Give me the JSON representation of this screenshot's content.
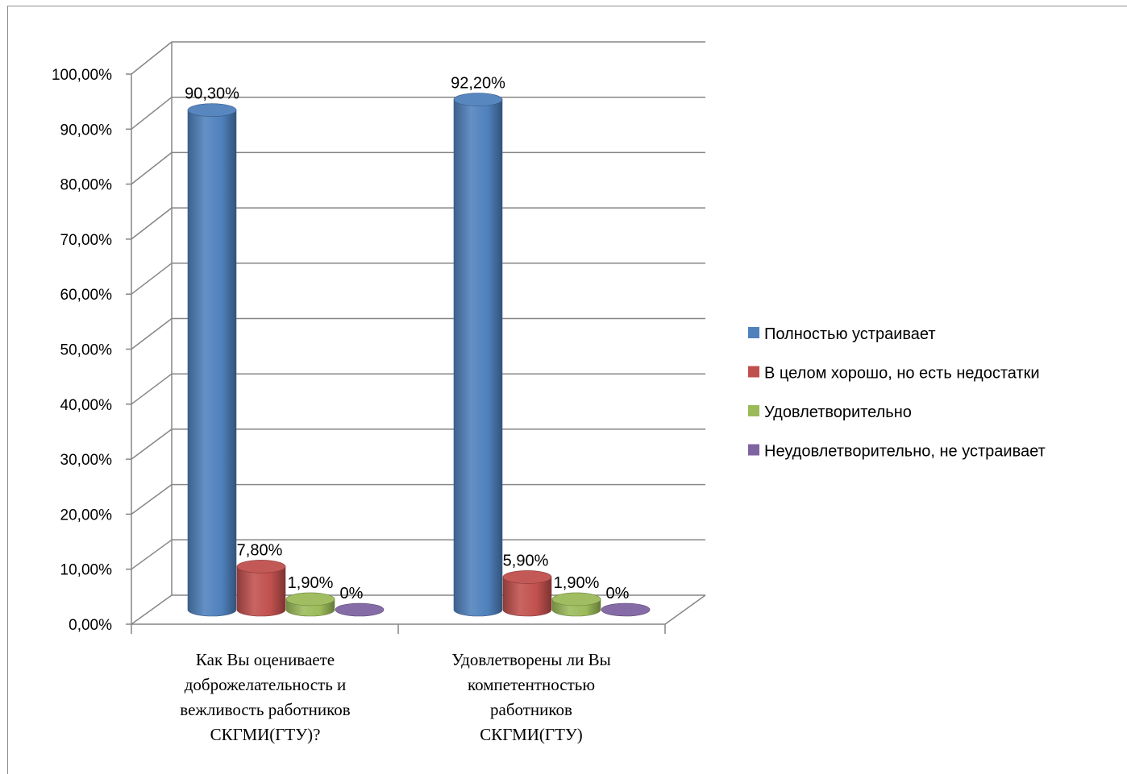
{
  "chart_data": {
    "type": "bar",
    "variant": "3d-cylinder",
    "categories": [
      "Как Вы оцениваете доброжелательность и вежливость работников СКГМИ(ГТУ)?",
      "Удовлетворены ли Вы компетентностью работников СКГМИ(ГТУ)"
    ],
    "category_lines": [
      [
        "Как Вы оцениваете",
        "доброжелательность и",
        "вежливость работников",
        "СКГМИ(ГТУ)?"
      ],
      [
        "Удовлетворены ли Вы",
        "компетентностью",
        "работников",
        "СКГМИ(ГТУ)"
      ]
    ],
    "series": [
      {
        "name": "Полностью устраивает",
        "color": "#4f81bd",
        "values": [
          90.3,
          92.2
        ],
        "labels": [
          "90,30%",
          "92,20%"
        ]
      },
      {
        "name": "В целом хорошо, но есть недостатки",
        "color": "#c0504d",
        "values": [
          7.8,
          5.9
        ],
        "labels": [
          "7,80%",
          "5,90%"
        ]
      },
      {
        "name": "Удовлетворительно",
        "color": "#9bbb59",
        "values": [
          1.9,
          1.9
        ],
        "labels": [
          "1,90%",
          "1,90%"
        ]
      },
      {
        "name": "Неудовлетворительно, не устраивает",
        "color": "#8064a2",
        "values": [
          0,
          0
        ],
        "labels": [
          "0%",
          "0%"
        ]
      }
    ],
    "ylim": [
      0,
      100
    ],
    "yticks": [
      0,
      10,
      20,
      30,
      40,
      50,
      60,
      70,
      80,
      90,
      100
    ],
    "ytick_labels": [
      "0,00%",
      "10,00%",
      "20,00%",
      "30,00%",
      "40,00%",
      "50,00%",
      "60,00%",
      "70,00%",
      "80,00%",
      "90,00%",
      "100,00%"
    ],
    "title": "",
    "xlabel": "",
    "ylabel": "",
    "grid": true,
    "legend_position": "right"
  }
}
